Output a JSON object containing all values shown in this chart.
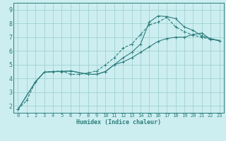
{
  "xlabel": "Humidex (Indice chaleur)",
  "bg_color": "#cceef0",
  "line_color": "#2d7d7d",
  "grid_color": "#99cccc",
  "spine_color": "#2d7d7d",
  "xlim": [
    -0.5,
    23.5
  ],
  "ylim": [
    1.5,
    9.5
  ],
  "yticks": [
    2,
    3,
    4,
    5,
    6,
    7,
    8,
    9
  ],
  "xticks": [
    0,
    1,
    2,
    3,
    4,
    5,
    6,
    7,
    8,
    9,
    10,
    11,
    12,
    13,
    14,
    15,
    16,
    17,
    18,
    19,
    20,
    21,
    22,
    23
  ],
  "series": [
    {
      "x": [
        0,
        1,
        2,
        3,
        4,
        5,
        6,
        7,
        8,
        9,
        10,
        11,
        12,
        13,
        14,
        15,
        16,
        17,
        18,
        19,
        20,
        21,
        22,
        23
      ],
      "y": [
        1.75,
        2.4,
        3.75,
        4.45,
        4.5,
        4.55,
        4.3,
        4.3,
        4.4,
        4.55,
        5.0,
        5.5,
        6.2,
        6.5,
        7.2,
        7.9,
        8.1,
        8.45,
        7.75,
        7.4,
        7.15,
        7.0,
        6.85,
        6.75
      ],
      "linestyle": "--",
      "marker": "+"
    },
    {
      "x": [
        0,
        2,
        3,
        4,
        5,
        6,
        8,
        9,
        10,
        11,
        12,
        13,
        14,
        15,
        16,
        17,
        18,
        19,
        20,
        21,
        22,
        23
      ],
      "y": [
        1.75,
        3.75,
        4.45,
        4.5,
        4.5,
        4.55,
        4.3,
        4.3,
        4.5,
        5.0,
        5.5,
        5.9,
        6.5,
        8.1,
        8.55,
        8.5,
        8.35,
        7.75,
        7.5,
        7.1,
        6.9,
        6.75
      ],
      "linestyle": "-",
      "marker": "+"
    },
    {
      "x": [
        0,
        2,
        3,
        4,
        5,
        6,
        8,
        9,
        10,
        11,
        12,
        13,
        14,
        15,
        16,
        17,
        18,
        19,
        20,
        21,
        22,
        23
      ],
      "y": [
        1.75,
        3.75,
        4.45,
        4.5,
        4.5,
        4.55,
        4.3,
        4.3,
        4.5,
        5.0,
        5.2,
        5.5,
        5.9,
        6.3,
        6.7,
        6.9,
        7.0,
        7.0,
        7.2,
        7.3,
        6.85,
        6.75
      ],
      "linestyle": "-",
      "marker": "+"
    }
  ]
}
